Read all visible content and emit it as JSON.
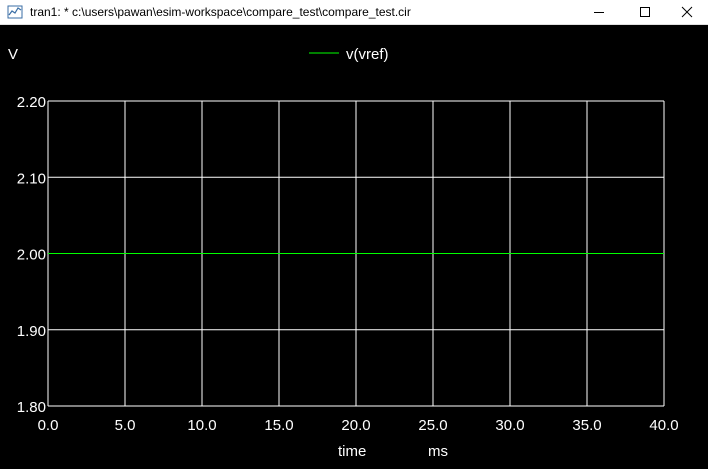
{
  "window": {
    "title": "tran1: * c:\\users\\pawan\\esim-workspace\\compare_test\\compare_test.cir",
    "minimize_icon": "minimize-icon",
    "maximize_icon": "maximize-icon",
    "close_icon": "close-icon"
  },
  "colors": {
    "background": "#000000",
    "grid": "#ffffff",
    "trace": "#00ff00",
    "text": "#ffffff"
  },
  "chart_data": {
    "type": "line",
    "ylabel": "V",
    "xlabel": "time",
    "xunit": "ms",
    "xlim": [
      0.0,
      40.0
    ],
    "ylim": [
      1.8,
      2.2
    ],
    "x_ticks": [
      "0.0",
      "5.0",
      "10.0",
      "15.0",
      "20.0",
      "25.0",
      "30.0",
      "35.0",
      "40.0"
    ],
    "y_ticks": [
      "2.20",
      "2.10",
      "2.00",
      "1.90",
      "1.80"
    ],
    "grid": true,
    "legend_position": "top-center",
    "series": [
      {
        "name": "v(vref)",
        "color": "#00ff00",
        "x": [
          0.0,
          40.0
        ],
        "y": [
          2.0,
          2.0
        ]
      }
    ]
  }
}
